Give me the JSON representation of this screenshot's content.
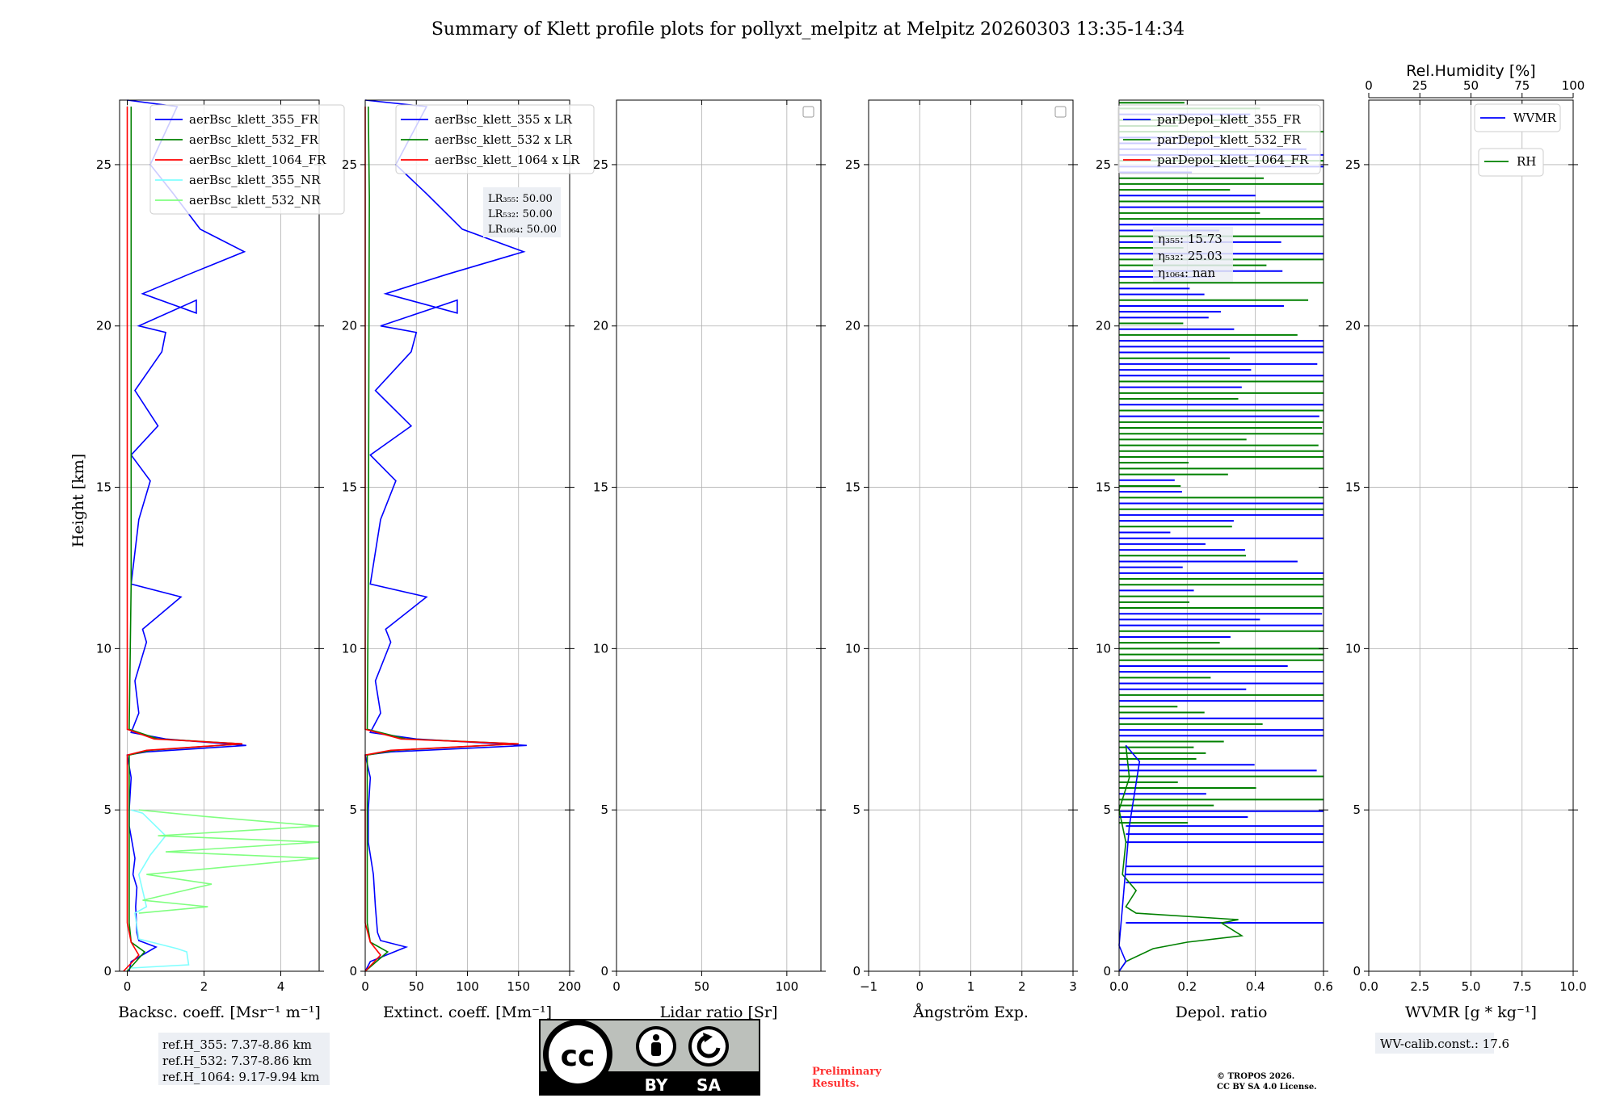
{
  "title": "Summary of Klett profile plots for pollyxt_melpitz at Melpitz 20260303 13:35-14:34",
  "ylabel": "Height [km]",
  "colors": {
    "blue": "#0000ff",
    "green": "#008000",
    "red": "#ff0000",
    "cyan": "#80ffff",
    "lightgreen": "#80ff80",
    "lavender": "#c8c8f5",
    "grid": "#b0b0b0",
    "box": "#eceff4"
  },
  "chart_data": [
    {
      "type": "line",
      "id": "bsc",
      "xlabel": "Backsc. coeff. [Msr⁻¹ m⁻¹]",
      "xlim": [
        -0.2,
        5
      ],
      "ylim": [
        0,
        27
      ],
      "xticks": [
        0,
        2,
        4
      ],
      "yticks": [
        0,
        5,
        10,
        15,
        20,
        25
      ],
      "legend": [
        "aerBsc_klett_355_FR",
        "aerBsc_klett_532_FR",
        "aerBsc_klett_1064_FR",
        "aerBsc_klett_355_NR",
        "aerBsc_klett_532_NR"
      ],
      "series": [
        {
          "name": "aerBsc_klett_355_FR",
          "color": "blue",
          "points": [
            [
              0.05,
              0
            ],
            [
              0.1,
              0.3
            ],
            [
              0.75,
              0.75
            ],
            [
              0.3,
              0.95
            ],
            [
              0.25,
              1.2
            ],
            [
              0.22,
              2.0
            ],
            [
              0.25,
              2.6
            ],
            [
              0.15,
              3.0
            ],
            [
              0.2,
              3.5
            ],
            [
              0.05,
              4.5
            ],
            [
              0.05,
              5.0
            ],
            [
              0.1,
              6.0
            ],
            [
              0.0,
              6.7
            ],
            [
              0.5,
              6.8
            ],
            [
              3.1,
              7.0
            ],
            [
              1.0,
              7.2
            ],
            [
              0.1,
              7.4
            ],
            [
              0.3,
              8.0
            ],
            [
              0.2,
              9.0
            ],
            [
              0.5,
              10.2
            ],
            [
              0.4,
              10.6
            ],
            [
              1.4,
              11.6
            ],
            [
              0.1,
              12.0
            ],
            [
              0.3,
              14.0
            ],
            [
              0.6,
              15.2
            ],
            [
              0.1,
              16.0
            ],
            [
              0.8,
              16.9
            ],
            [
              0.2,
              18.0
            ],
            [
              0.9,
              19.2
            ],
            [
              1.0,
              19.8
            ],
            [
              0.3,
              20.0
            ],
            [
              1.8,
              20.8
            ],
            [
              1.8,
              20.4
            ],
            [
              0.4,
              21.0
            ],
            [
              1.6,
              21.6
            ],
            [
              3.05,
              22.3
            ],
            [
              1.9,
              23.0
            ],
            [
              1.2,
              24.1
            ],
            [
              0.6,
              25.0
            ],
            [
              1.3,
              26.8
            ],
            [
              0.0,
              27.0
            ]
          ]
        },
        {
          "name": "aerBsc_klett_532_FR",
          "color": "green",
          "points": [
            [
              0.0,
              0
            ],
            [
              0.45,
              0.6
            ],
            [
              0.1,
              0.9
            ],
            [
              0.05,
              1.5
            ],
            [
              0.05,
              5.0
            ],
            [
              0.05,
              6.7
            ],
            [
              0.6,
              6.85
            ],
            [
              3.0,
              7.05
            ],
            [
              0.8,
              7.2
            ],
            [
              0.05,
              7.5
            ],
            [
              0.1,
              12.0
            ],
            [
              0.1,
              20.0
            ],
            [
              0.1,
              26.8
            ]
          ]
        },
        {
          "name": "aerBsc_klett_1064_FR",
          "color": "red",
          "points": [
            [
              -0.1,
              0
            ],
            [
              0.3,
              0.5
            ],
            [
              0.1,
              0.9
            ],
            [
              0.0,
              1.5
            ],
            [
              0.0,
              6.7
            ],
            [
              0.5,
              6.85
            ],
            [
              3.0,
              7.05
            ],
            [
              0.7,
              7.2
            ],
            [
              0.0,
              7.5
            ],
            [
              0.0,
              26.8
            ]
          ]
        },
        {
          "name": "aerBsc_klett_355_NR",
          "color": "cyan",
          "points": [
            [
              0.1,
              0.1
            ],
            [
              1.6,
              0.2
            ],
            [
              1.55,
              0.6
            ],
            [
              1.3,
              0.7
            ],
            [
              0.3,
              1.0
            ],
            [
              0.2,
              1.8
            ],
            [
              0.5,
              2.0
            ],
            [
              0.3,
              3.0
            ],
            [
              0.6,
              3.6
            ],
            [
              1.0,
              4.2
            ],
            [
              0.4,
              4.9
            ],
            [
              0.1,
              5.0
            ]
          ]
        },
        {
          "name": "aerBsc_klett_532_NR",
          "color": "lightgreen",
          "points": [
            [
              0.3,
              1.8
            ],
            [
              2.1,
              2.0
            ],
            [
              0.4,
              2.2
            ],
            [
              2.2,
              2.7
            ],
            [
              0.5,
              3.0
            ],
            [
              5.0,
              3.5
            ],
            [
              1.0,
              3.7
            ],
            [
              5.0,
              4.0
            ],
            [
              0.8,
              4.2
            ],
            [
              5.0,
              4.5
            ],
            [
              2.0,
              4.8
            ],
            [
              0.3,
              5.0
            ]
          ]
        }
      ],
      "refbox": [
        "ref.H_355: 7.37-8.86 km",
        "ref.H_532: 7.37-8.86 km",
        "ref.H_1064: 9.17-9.94 km"
      ]
    },
    {
      "type": "line",
      "id": "ext",
      "xlabel": "Extinct. coeff. [Mm⁻¹]",
      "xlim": [
        0,
        200
      ],
      "ylim": [
        0,
        27
      ],
      "xticks": [
        0,
        50,
        100,
        150,
        200
      ],
      "yticks": [
        0,
        5,
        10,
        15,
        20,
        25
      ],
      "legend": [
        "aerBsc_klett_355 x LR",
        "aerBsc_klett_532 x LR",
        "aerBsc_klett_1064 x LR"
      ],
      "lr": [
        "LR₃₅₅: 50.00",
        "LR₅₃₂: 50.00",
        "LR₁₀₆₄: 50.00"
      ],
      "series": [
        {
          "name": "aerBsc_klett_355 x LR",
          "color": "blue",
          "points": [
            [
              0,
              0
            ],
            [
              5,
              0.3
            ],
            [
              40,
              0.75
            ],
            [
              15,
              0.95
            ],
            [
              12,
              1.2
            ],
            [
              10,
              2.0
            ],
            [
              8,
              3.0
            ],
            [
              3,
              4.0
            ],
            [
              3,
              5.0
            ],
            [
              5,
              6.0
            ],
            [
              0,
              6.7
            ],
            [
              25,
              6.8
            ],
            [
              158,
              7.0
            ],
            [
              50,
              7.2
            ],
            [
              5,
              7.4
            ],
            [
              15,
              8.0
            ],
            [
              10,
              9.0
            ],
            [
              25,
              10.2
            ],
            [
              20,
              10.6
            ],
            [
              60,
              11.6
            ],
            [
              5,
              12.0
            ],
            [
              15,
              14.0
            ],
            [
              30,
              15.2
            ],
            [
              5,
              16.0
            ],
            [
              45,
              16.9
            ],
            [
              10,
              18.0
            ],
            [
              45,
              19.2
            ],
            [
              50,
              19.8
            ],
            [
              15,
              20.0
            ],
            [
              90,
              20.8
            ],
            [
              90,
              20.4
            ],
            [
              20,
              21.0
            ],
            [
              80,
              21.6
            ],
            [
              155,
              22.3
            ],
            [
              95,
              23.0
            ],
            [
              60,
              24.1
            ],
            [
              30,
              25.0
            ],
            [
              60,
              26.8
            ],
            [
              0,
              27.0
            ]
          ]
        },
        {
          "name": "aerBsc_klett_532 x LR",
          "color": "green",
          "points": [
            [
              0,
              0
            ],
            [
              22,
              0.6
            ],
            [
              5,
              0.9
            ],
            [
              2,
              1.5
            ],
            [
              2,
              6.7
            ],
            [
              30,
              6.85
            ],
            [
              150,
              7.05
            ],
            [
              40,
              7.2
            ],
            [
              2,
              7.5
            ],
            [
              3,
              12.0
            ],
            [
              4,
              24.0
            ],
            [
              3,
              26.8
            ]
          ]
        },
        {
          "name": "aerBsc_klett_1064 x LR",
          "color": "red",
          "points": [
            [
              0,
              0
            ],
            [
              15,
              0.5
            ],
            [
              5,
              0.9
            ],
            [
              0,
              1.5
            ],
            [
              0,
              6.7
            ],
            [
              25,
              6.85
            ],
            [
              150,
              7.05
            ],
            [
              35,
              7.2
            ],
            [
              0,
              7.5
            ],
            [
              0,
              26.8
            ]
          ]
        }
      ]
    },
    {
      "type": "line",
      "id": "lr",
      "xlabel": "Lidar ratio [Sr]",
      "xlim": [
        0,
        120
      ],
      "ylim": [
        0,
        27
      ],
      "xticks": [
        0,
        50,
        100
      ],
      "yticks": [
        0,
        5,
        10,
        15,
        20,
        25
      ],
      "series": []
    },
    {
      "type": "line",
      "id": "ang",
      "xlabel": "Ångström Exp.",
      "xlim": [
        -1,
        3
      ],
      "ylim": [
        0,
        27
      ],
      "xticks": [
        -1,
        0,
        1,
        2,
        3
      ],
      "yticks": [
        0,
        5,
        10,
        15,
        20,
        25
      ],
      "series": []
    },
    {
      "type": "line",
      "id": "depol",
      "xlabel": "Depol. ratio",
      "xlim": [
        0,
        0.6
      ],
      "ylim": [
        0,
        27
      ],
      "xticks": [
        0.0,
        0.2,
        0.4,
        0.6
      ],
      "xtick_labels": [
        "0.0",
        "0.2",
        "0.4",
        "0.6"
      ],
      "yticks": [
        0,
        5,
        10,
        15,
        20,
        25
      ],
      "legend": [
        "parDepol_klett_355_FR",
        "parDepol_klett_532_FR",
        "parDepol_klett_1064_FR"
      ],
      "eta": [
        "η₃₅₅: 15.73",
        "η₅₃₂: 25.03",
        "η₁₀₆₄: nan"
      ],
      "series": [
        {
          "name": "parDepol_klett_532_FR",
          "color": "green",
          "points": [
            [
              0.0,
              0.0
            ],
            [
              0.02,
              0.3
            ],
            [
              0.1,
              0.7
            ],
            [
              0.2,
              0.9
            ],
            [
              0.36,
              1.1
            ],
            [
              0.3,
              1.5
            ],
            [
              0.35,
              1.6
            ],
            [
              0.05,
              1.8
            ],
            [
              0.02,
              2.0
            ],
            [
              0.05,
              2.5
            ],
            [
              0.01,
              3.0
            ],
            [
              0.02,
              4.0
            ],
            [
              0.0,
              5.0
            ],
            [
              0.03,
              6.0
            ],
            [
              0.02,
              7.0
            ]
          ]
        },
        {
          "name": "parDepol_klett_355_FR",
          "color": "blue",
          "points": [
            [
              0.0,
              0.0
            ],
            [
              0.02,
              0.3
            ],
            [
              0.0,
              0.8
            ],
            [
              0.01,
              2.0
            ],
            [
              0.03,
              4.5
            ],
            [
              0.06,
              6.5
            ],
            [
              0.02,
              7.0
            ]
          ]
        }
      ]
    },
    {
      "type": "line",
      "id": "wv",
      "xlabel": "WVMR [g * kg⁻¹]",
      "xlim": [
        0,
        10
      ],
      "ylim": [
        0,
        27
      ],
      "xticks": [
        0,
        2.5,
        5,
        7.5,
        10
      ],
      "xtick_labels": [
        "0.0",
        "2.5",
        "5.0",
        "7.5",
        "10.0"
      ],
      "yticks": [
        0,
        5,
        10,
        15,
        20,
        25
      ],
      "top_xlabel": "Rel.Humidity [%]",
      "top_xticks": [
        0,
        25,
        50,
        75,
        100
      ],
      "legend": [
        "WVMR",
        "RH"
      ],
      "series": [],
      "calib": "WV-calib.const.: 17.6"
    }
  ],
  "license": {
    "cc": "cc",
    "by": "BY",
    "sa": "SA"
  },
  "preliminary": [
    "Preliminary",
    "Results."
  ],
  "copyright": [
    "© TROPOS 2026.",
    "CC BY SA 4.0 License."
  ]
}
